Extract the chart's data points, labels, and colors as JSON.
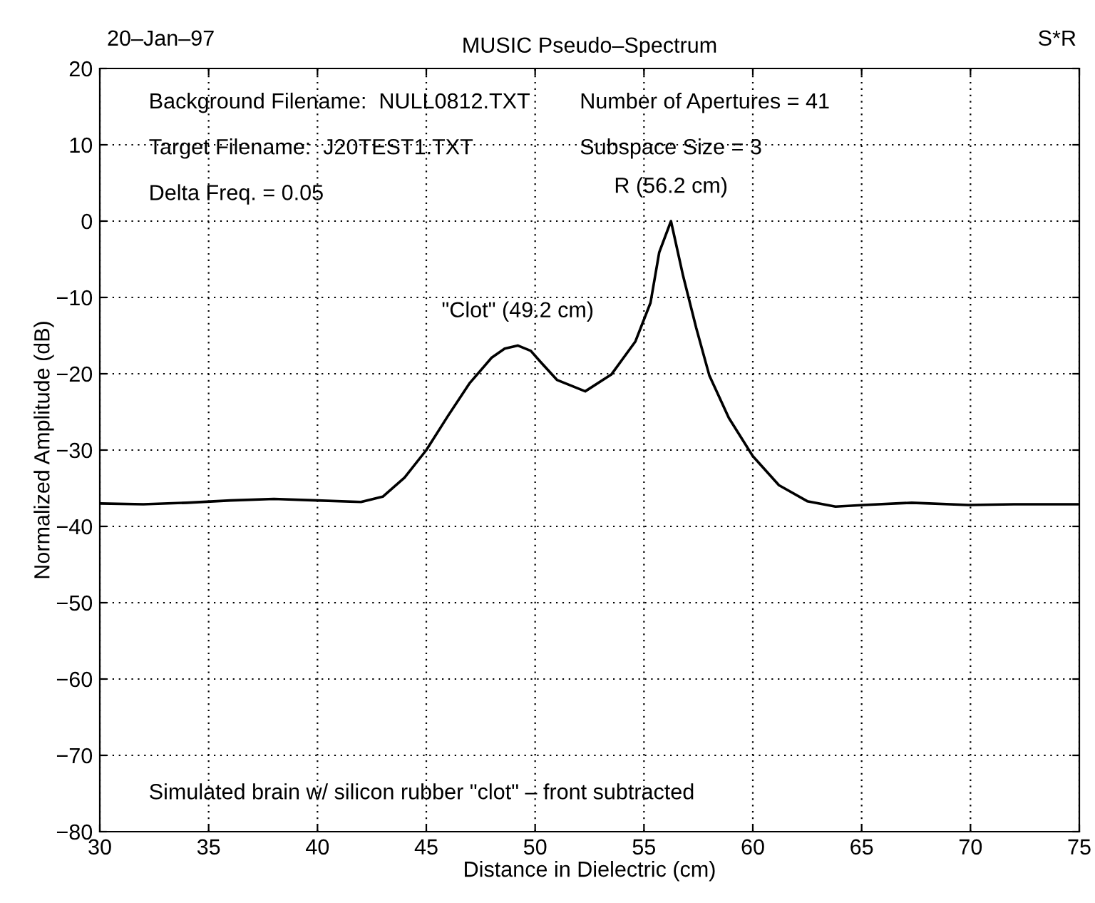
{
  "chart_data": {
    "type": "line",
    "title": "MUSIC Pseudo–Spectrum",
    "xlabel": "Distance in Dielectric (cm)",
    "ylabel": "Normalized Amplitude (dB)",
    "x": [
      30,
      32,
      34,
      36,
      38,
      40,
      42,
      43,
      44,
      45,
      46,
      47,
      48,
      48.6,
      49.2,
      49.8,
      50.2,
      51,
      52.3,
      53.5,
      54.6,
      55.3,
      55.7,
      56.24,
      56.8,
      57.4,
      58.0,
      58.9,
      60,
      61.2,
      62.5,
      63.8,
      65.1,
      67.3,
      69.9,
      72,
      75
    ],
    "series": [
      {
        "color": "#000000",
        "values": [
          -37,
          -37.1,
          -36.9,
          -36.6,
          -36.4,
          -36.6,
          -36.8,
          -36.1,
          -33.6,
          -30,
          -25.5,
          -21.2,
          -17.9,
          -16.7,
          -16.3,
          -17,
          -18.3,
          -20.8,
          -22.3,
          -20.1,
          -15.8,
          -10.7,
          -4.1,
          0,
          -7.2,
          -14,
          -20.2,
          -25.8,
          -30.8,
          -34.6,
          -36.7,
          -37.4,
          -37.2,
          -36.9,
          -37.2,
          -37.1,
          -37.1
        ]
      }
    ],
    "xlim": [
      30,
      75
    ],
    "xticks": [
      30,
      35,
      40,
      45,
      50,
      55,
      60,
      65,
      70,
      75
    ],
    "ylim": [
      -80,
      20
    ],
    "yticks": [
      {
        "value": -80,
        "label": "−80"
      },
      {
        "value": -70,
        "label": "−70"
      },
      {
        "value": -60,
        "label": "−60"
      },
      {
        "value": -50,
        "label": "−50"
      },
      {
        "value": -40,
        "label": "−40"
      },
      {
        "value": -30,
        "label": "−30"
      },
      {
        "value": -20,
        "label": "−20"
      },
      {
        "value": -10,
        "label": "−10"
      },
      0,
      10,
      20
    ],
    "grid": true,
    "line_style": "solid",
    "marker": "none",
    "legend": false,
    "annotations": [
      "20–Jan–97",
      "S*R",
      "Background Filename:  NULL0812.TXT",
      "Number of Apertures = 41",
      "Target Filename:  J20TEST1.TXT",
      "Subspace Size = 3",
      "Delta Freq. = 0.05",
      {
        "text": "\"Clot\" (49.2 cm)",
        "x": 49.2,
        "y": -16.3
      },
      {
        "text": "R (56.2 cm)",
        "x": 56.24,
        "y": 0
      },
      "Simulated brain w/ silicon rubber \"clot\" – front subtracted"
    ]
  }
}
